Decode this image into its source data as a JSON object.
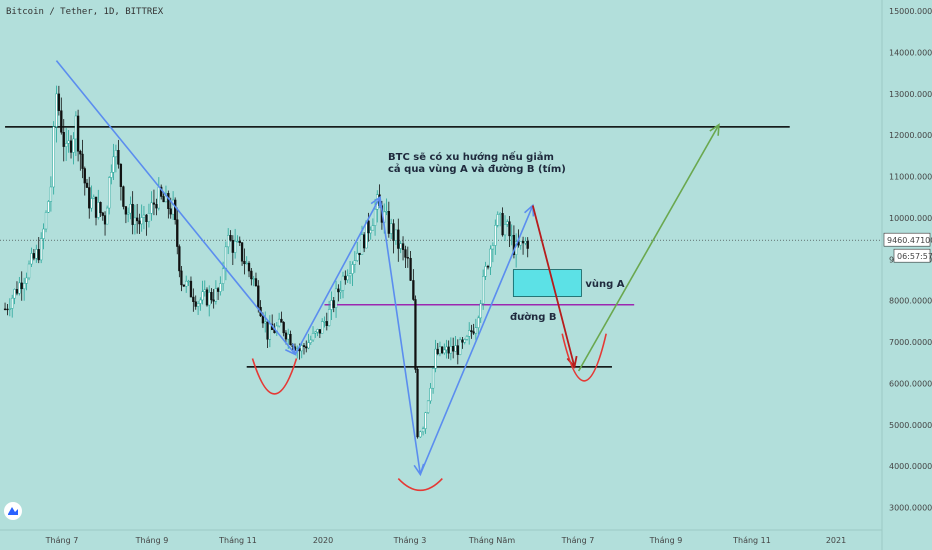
{
  "chart_data": {
    "type": "line",
    "title": "Bitcoin / Tether, 1D, BITTREX",
    "xlabel": "",
    "ylabel": "",
    "ylim": [
      2700,
      15300
    ],
    "x_ticks": [
      "Tháng 7",
      "Tháng 9",
      "Tháng 11",
      "2020",
      "Tháng 3",
      "Tháng Năm",
      "Tháng 7",
      "Tháng 9",
      "Tháng 11",
      "2021"
    ],
    "y_ticks": [
      "3000.000000",
      "4000.000000",
      "5000.000000",
      "6000.000000",
      "7000.000000",
      "8000.000000",
      "9000.000000",
      "10000.000000",
      "11000.000000",
      "12000.000000",
      "13000.000000",
      "14000.000000",
      "15000.000000"
    ],
    "current_price": "9460.47100",
    "countdown": "06:57:57",
    "price_series": [
      {
        "date": "2019-05-20",
        "close": 7800
      },
      {
        "date": "2019-06-01",
        "close": 8500
      },
      {
        "date": "2019-06-15",
        "close": 9300
      },
      {
        "date": "2019-06-22",
        "close": 10800
      },
      {
        "date": "2019-06-26",
        "close": 13000
      },
      {
        "date": "2019-07-03",
        "close": 11500
      },
      {
        "date": "2019-07-10",
        "close": 12300
      },
      {
        "date": "2019-07-18",
        "close": 10500
      },
      {
        "date": "2019-07-31",
        "close": 10000
      },
      {
        "date": "2019-08-06",
        "close": 11800
      },
      {
        "date": "2019-08-15",
        "close": 10200
      },
      {
        "date": "2019-08-28",
        "close": 9800
      },
      {
        "date": "2019-09-06",
        "close": 10500
      },
      {
        "date": "2019-09-18",
        "close": 10200
      },
      {
        "date": "2019-09-24",
        "close": 8500
      },
      {
        "date": "2019-10-06",
        "close": 8000
      },
      {
        "date": "2019-10-22",
        "close": 8200
      },
      {
        "date": "2019-10-26",
        "close": 9500
      },
      {
        "date": "2019-11-05",
        "close": 9200
      },
      {
        "date": "2019-11-15",
        "close": 8500
      },
      {
        "date": "2019-11-25",
        "close": 7200
      },
      {
        "date": "2019-12-05",
        "close": 7400
      },
      {
        "date": "2019-12-18",
        "close": 6800
      },
      {
        "date": "2019-12-31",
        "close": 7200
      },
      {
        "date": "2020-01-10",
        "close": 7800
      },
      {
        "date": "2020-01-20",
        "close": 8700
      },
      {
        "date": "2020-02-01",
        "close": 9400
      },
      {
        "date": "2020-02-12",
        "close": 10300
      },
      {
        "date": "2020-02-22",
        "close": 9700
      },
      {
        "date": "2020-03-05",
        "close": 8900
      },
      {
        "date": "2020-03-09",
        "close": 7900
      },
      {
        "date": "2020-03-12",
        "close": 4800
      },
      {
        "date": "2020-03-16",
        "close": 5000
      },
      {
        "date": "2020-03-25",
        "close": 6700
      },
      {
        "date": "2020-04-05",
        "close": 6800
      },
      {
        "date": "2020-04-15",
        "close": 6900
      },
      {
        "date": "2020-04-23",
        "close": 7500
      },
      {
        "date": "2020-04-30",
        "close": 8700
      },
      {
        "date": "2020-05-07",
        "close": 9900
      },
      {
        "date": "2020-05-14",
        "close": 9800
      },
      {
        "date": "2020-05-22",
        "close": 9200
      },
      {
        "date": "2020-06-01",
        "close": 9500
      }
    ],
    "horizontal_lines": [
      {
        "price": 12200,
        "color": "#000000",
        "from": "2019-05-20",
        "to": "2020-12-05"
      },
      {
        "price": 6400,
        "color": "#000000",
        "from": "2019-11-10",
        "to": "2020-07-30"
      },
      {
        "price": 7900,
        "color": "#9c27b0",
        "from": "2020-01-05",
        "to": "2020-08-15"
      }
    ],
    "zone_A": {
      "from": "2020-05-20",
      "to": "2020-07-08",
      "low": 8100,
      "high": 8750,
      "color": "#5ce1e6",
      "label": "vùng A"
    },
    "line_B_label": "đường B",
    "annotation": [
      "BTC sẽ có xu hướng nếu giảm",
      "cả qua vùng A và đường B (tím)"
    ],
    "blue_arrows": [
      {
        "from": {
          "date": "2019-06-26",
          "price": 13800
        },
        "to": {
          "date": "2019-12-15",
          "price": 6700
        }
      },
      {
        "from": {
          "date": "2019-12-15",
          "price": 6700
        },
        "to": {
          "date": "2020-02-14",
          "price": 10500
        }
      },
      {
        "from": {
          "date": "2020-02-14",
          "price": 10500
        },
        "to": {
          "date": "2020-03-14",
          "price": 3800
        }
      },
      {
        "from": {
          "date": "2020-03-14",
          "price": 3800
        },
        "to": {
          "date": "2020-06-03",
          "price": 10300
        }
      }
    ],
    "red_arrow": {
      "from": {
        "date": "2020-06-03",
        "price": 10300
      },
      "to": {
        "date": "2020-07-03",
        "price": 6400
      },
      "color": "#b71c1c"
    },
    "green_arrow": {
      "from": {
        "date": "2020-07-06",
        "price": 6300
      },
      "to": {
        "date": "2020-10-15",
        "price": 12250
      },
      "color": "#6aa84f"
    },
    "red_arcs": [
      {
        "center": "2019-11-30",
        "top": 6600,
        "bottom": 5700
      },
      {
        "center": "2020-03-14",
        "top": 3700,
        "bottom": 3400
      },
      {
        "center": "2020-07-10",
        "top": 7200,
        "bottom": 6000
      }
    ]
  },
  "colors": {
    "background": "#b2dfdb",
    "up": "#26a69a",
    "down": "#111111"
  },
  "logo": "tradingview-icon"
}
